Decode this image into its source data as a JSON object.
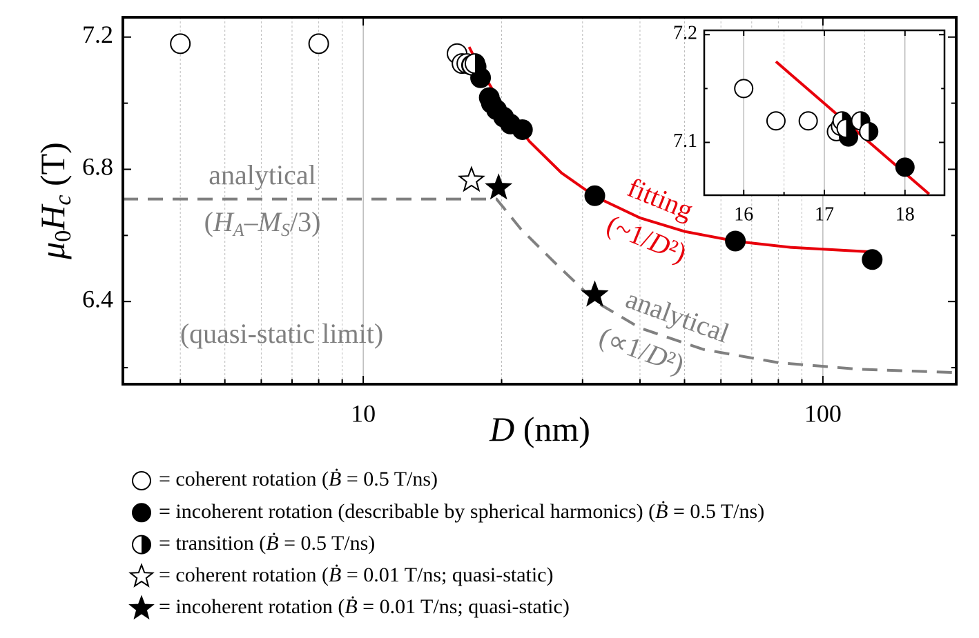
{
  "chart_data": [
    {
      "type": "scatter",
      "xscale": "log",
      "xlim": [
        3,
        195
      ],
      "ylim": [
        6.15,
        7.26
      ],
      "xticks": [
        10,
        100
      ],
      "xminor": [
        4,
        5,
        6,
        7,
        8,
        9,
        20,
        30,
        40,
        50,
        60,
        70,
        80,
        90
      ],
      "yticks": [
        6.4,
        6.8,
        7.2
      ],
      "yminor": [
        6.2,
        6.6,
        7.0
      ],
      "grid": true,
      "xlabel": [
        "D",
        " (nm)"
      ],
      "ylabel": [
        "μ",
        "0",
        "H",
        "c",
        " (T)"
      ],
      "series": [
        {
          "marker": "open-circle",
          "x": [
            4,
            8,
            16,
            16.4,
            16.8,
            17.2
          ],
          "values": [
            7.18,
            7.18,
            7.15,
            7.12,
            7.12,
            7.115
          ]
        },
        {
          "marker": "filled-circle",
          "x": [
            17.6,
            18,
            18.8,
            19,
            19.5,
            20.2,
            20.9,
            22.2,
            31.9,
            64.5,
            128
          ],
          "values": [
            7.11,
            7.077,
            7.017,
            7.0,
            6.98,
            6.958,
            6.937,
            6.92,
            6.72,
            6.583,
            6.527
          ]
        },
        {
          "marker": "half-circle",
          "x": [
            17.25,
            17.5
          ],
          "values": [
            7.115,
            7.12
          ]
        },
        {
          "marker": "open-star",
          "x": [
            17.2
          ],
          "values": [
            6.767
          ]
        },
        {
          "marker": "filled-star",
          "x": [
            19.7,
            31.9
          ],
          "values": [
            6.744,
            6.42
          ]
        },
        {
          "marker": "line",
          "color": "#e8000b",
          "dashed": false,
          "x": [
            17,
            18,
            20,
            23,
            27,
            32,
            40,
            50,
            65,
            85,
            128
          ],
          "values": [
            7.17,
            7.102,
            6.995,
            6.884,
            6.789,
            6.717,
            6.653,
            6.612,
            6.582,
            6.564,
            6.55
          ]
        },
        {
          "marker": "line",
          "color": "#808080",
          "dashed": true,
          "x": [
            3,
            19.5,
            22,
            26,
            32,
            40,
            55,
            80,
            120,
            195
          ],
          "values": [
            6.71,
            6.71,
            6.62,
            6.52,
            6.4,
            6.32,
            6.255,
            6.215,
            6.195,
            6.185
          ]
        }
      ]
    },
    {
      "type": "scatter",
      "xscale": "linear",
      "xlim": [
        15.51,
        18.49
      ],
      "ylim": [
        7.051,
        7.204
      ],
      "xticks": [
        16,
        17,
        18
      ],
      "xminor": [
        16.5,
        17.5
      ],
      "yticks": [
        7.1,
        7.2
      ],
      "yminor": [
        7.15
      ],
      "grid": true,
      "series": [
        {
          "marker": "open-circle",
          "x": [
            16,
            16.4,
            16.8,
            17.15,
            17.2
          ],
          "values": [
            7.15,
            7.12,
            7.12,
            7.11,
            7.115
          ]
        },
        {
          "marker": "filled-circle",
          "x": [
            17.3,
            18
          ],
          "values": [
            7.105,
            7.077
          ]
        },
        {
          "marker": "half-circle",
          "x": [
            17.22,
            17.27,
            17.45,
            17.55
          ],
          "values": [
            7.12,
            7.113,
            7.12,
            7.11
          ]
        },
        {
          "marker": "line",
          "color": "#e8000b",
          "dashed": false,
          "x": [
            16.4,
            18.3
          ],
          "values": [
            7.175,
            7.052
          ]
        }
      ]
    }
  ],
  "annotations": {
    "analytical1": "analytical",
    "analytical1_sub": [
      "(",
      "H",
      "A",
      "–",
      "M",
      "S",
      "/3)"
    ],
    "quasi": "(quasi-static limit)",
    "fitting": "fitting",
    "fitting_sub": [
      "(~1/",
      "D",
      "²)"
    ],
    "analytical2": "analytical",
    "analytical2_sub": [
      "(∝1/",
      "D",
      "²)"
    ]
  },
  "legend": [
    {
      "marker": "open-circle",
      "parts": [
        "= coherent rotation (",
        "Ḃ",
        " = 0.5 T/ns)"
      ]
    },
    {
      "marker": "filled-circle",
      "parts": [
        "= incoherent rotation (describable by spherical harmonics) (",
        "Ḃ",
        " = 0.5 T/ns)"
      ]
    },
    {
      "marker": "half-circle",
      "parts": [
        "= transition (",
        "Ḃ",
        " = 0.5 T/ns)"
      ]
    },
    {
      "marker": "open-star",
      "parts": [
        "= coherent rotation (",
        "Ḃ",
        " = 0.01 T/ns; quasi-static)"
      ]
    },
    {
      "marker": "filled-star",
      "parts": [
        "= incoherent rotation (",
        "Ḃ",
        " = 0.01 T/ns; quasi-static)"
      ]
    }
  ]
}
